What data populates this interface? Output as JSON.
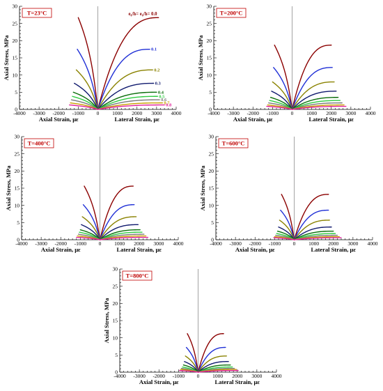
{
  "figure": {
    "ratio_legend_title": "e₀/h= e₀/h= 0.0"
  },
  "chart_data": [
    {
      "type": "line",
      "temperature_label": "T=23°C",
      "xlabel_left": "Axial Strain, με",
      "xlabel_right": "Lateral Strain, με",
      "ylabel": "Axial Stress, MPa",
      "xlim": [
        -4000,
        4000
      ],
      "ylim": [
        0,
        30
      ],
      "x_ticks": [
        -4000,
        -3000,
        -2000,
        -1000,
        0,
        1000,
        2000,
        3000,
        4000
      ],
      "y_ticks": [
        0,
        5,
        10,
        15,
        20,
        25,
        30
      ],
      "series_labels_shown": true,
      "series": [
        {
          "name": "0.0",
          "color": "#8b0000",
          "peak": 26.7,
          "axial_end": -1000,
          "lateral_end": 3100
        },
        {
          "name": "0.1",
          "color": "#1f2fd6",
          "peak": 17.5,
          "axial_end": -1050,
          "lateral_end": 2650
        },
        {
          "name": "0.2",
          "color": "#8a8200",
          "peak": 11.5,
          "axial_end": -1100,
          "lateral_end": 2800
        },
        {
          "name": "0.3",
          "color": "#101a6e",
          "peak": 7.6,
          "axial_end": -1200,
          "lateral_end": 2850
        },
        {
          "name": "0.4",
          "color": "#0a6e0a",
          "peak": 5.0,
          "axial_end": -1250,
          "lateral_end": 3000
        },
        {
          "name": "0.5",
          "color": "#2ecc40",
          "peak": 3.8,
          "axial_end": -1300,
          "lateral_end": 3050
        },
        {
          "name": "0.6",
          "color": "#7a7a7a",
          "peak": 2.8,
          "axial_end": -1350,
          "lateral_end": 3150
        },
        {
          "name": "0.7",
          "color": "#c9a000",
          "peak": 1.9,
          "axial_end": -1400,
          "lateral_end": 3300
        },
        {
          "name": "0.8",
          "color": "#e0209a",
          "peak": 1.3,
          "axial_end": -1450,
          "lateral_end": 3400
        }
      ]
    },
    {
      "type": "line",
      "temperature_label": "T=200°C",
      "xlabel_left": "Axial Strain, με",
      "xlabel_right": "Lateral Strain, με",
      "ylabel": "Axial Stress, MPa",
      "xlim": [
        -4000,
        4000
      ],
      "ylim": [
        0,
        30
      ],
      "x_ticks": [
        -4000,
        -3000,
        -2000,
        -1000,
        0,
        1000,
        2000,
        3000,
        4000
      ],
      "y_ticks": [
        0,
        5,
        10,
        15,
        20,
        25,
        30
      ],
      "series_labels_shown": false,
      "series": [
        {
          "name": "0.0",
          "color": "#8b0000",
          "peak": 18.7,
          "axial_end": -900,
          "lateral_end": 2000
        },
        {
          "name": "0.1",
          "color": "#1f2fd6",
          "peak": 12.2,
          "axial_end": -950,
          "lateral_end": 2050
        },
        {
          "name": "0.2",
          "color": "#8a8200",
          "peak": 8.0,
          "axial_end": -1000,
          "lateral_end": 2150
        },
        {
          "name": "0.3",
          "color": "#101a6e",
          "peak": 5.3,
          "axial_end": -1050,
          "lateral_end": 2250
        },
        {
          "name": "0.4",
          "color": "#0a6e0a",
          "peak": 3.5,
          "axial_end": -1100,
          "lateral_end": 2350
        },
        {
          "name": "0.5",
          "color": "#2ecc40",
          "peak": 2.6,
          "axial_end": -1150,
          "lateral_end": 2450
        },
        {
          "name": "0.6",
          "color": "#7a7a7a",
          "peak": 1.9,
          "axial_end": -1200,
          "lateral_end": 2550
        },
        {
          "name": "0.7",
          "color": "#c9a000",
          "peak": 1.3,
          "axial_end": -1250,
          "lateral_end": 2650
        },
        {
          "name": "0.8",
          "color": "#e0209a",
          "peak": 0.9,
          "axial_end": -1300,
          "lateral_end": 2750
        }
      ]
    },
    {
      "type": "line",
      "temperature_label": "T=400°C",
      "xlabel_left": "Axial Strain, με",
      "xlabel_right": "Lateral Strain, με",
      "ylabel": "Axial Stress, MPa",
      "xlim": [
        -4000,
        4000
      ],
      "ylim": [
        0,
        30
      ],
      "x_ticks": [
        -4000,
        -3000,
        -2000,
        -1000,
        0,
        1000,
        2000,
        3000,
        4000
      ],
      "y_ticks": [
        0,
        5,
        10,
        15,
        20,
        25,
        30
      ],
      "series_labels_shown": false,
      "series": [
        {
          "name": "0.0",
          "color": "#8b0000",
          "peak": 15.6,
          "axial_end": -800,
          "lateral_end": 1700
        },
        {
          "name": "0.1",
          "color": "#1f2fd6",
          "peak": 10.2,
          "axial_end": -850,
          "lateral_end": 1750
        },
        {
          "name": "0.2",
          "color": "#8a8200",
          "peak": 6.7,
          "axial_end": -900,
          "lateral_end": 1850
        },
        {
          "name": "0.3",
          "color": "#101a6e",
          "peak": 4.4,
          "axial_end": -950,
          "lateral_end": 1950
        },
        {
          "name": "0.4",
          "color": "#0a6e0a",
          "peak": 2.9,
          "axial_end": -1000,
          "lateral_end": 2050
        },
        {
          "name": "0.5",
          "color": "#2ecc40",
          "peak": 2.2,
          "axial_end": -1050,
          "lateral_end": 2150
        },
        {
          "name": "0.6",
          "color": "#7a7a7a",
          "peak": 1.6,
          "axial_end": -1100,
          "lateral_end": 2250
        },
        {
          "name": "0.7",
          "color": "#c9a000",
          "peak": 1.1,
          "axial_end": -1150,
          "lateral_end": 2350
        },
        {
          "name": "0.8",
          "color": "#e0209a",
          "peak": 0.7,
          "axial_end": -1200,
          "lateral_end": 2450
        }
      ]
    },
    {
      "type": "line",
      "temperature_label": "T=600°C",
      "xlabel_left": "Axial Strain, με",
      "xlabel_right": "Lateral Strain, με",
      "ylabel": "Axial Stress, MPa",
      "xlim": [
        -4000,
        4000
      ],
      "ylim": [
        0,
        30
      ],
      "x_ticks": [
        -4000,
        -3000,
        -2000,
        -1000,
        0,
        1000,
        2000,
        3000,
        4000
      ],
      "y_ticks": [
        0,
        5,
        10,
        15,
        20,
        25,
        30
      ],
      "series_labels_shown": false,
      "series": [
        {
          "name": "0.0",
          "color": "#8b0000",
          "peak": 13.2,
          "axial_end": -650,
          "lateral_end": 1750
        },
        {
          "name": "0.1",
          "color": "#1f2fd6",
          "peak": 8.6,
          "axial_end": -700,
          "lateral_end": 1750
        },
        {
          "name": "0.2",
          "color": "#8a8200",
          "peak": 5.7,
          "axial_end": -750,
          "lateral_end": 1800
        },
        {
          "name": "0.3",
          "color": "#101a6e",
          "peak": 3.7,
          "axial_end": -800,
          "lateral_end": 1900
        },
        {
          "name": "0.4",
          "color": "#0a6e0a",
          "peak": 2.5,
          "axial_end": -850,
          "lateral_end": 2000
        },
        {
          "name": "0.5",
          "color": "#2ecc40",
          "peak": 1.8,
          "axial_end": -900,
          "lateral_end": 2100
        },
        {
          "name": "0.6",
          "color": "#7a7a7a",
          "peak": 1.3,
          "axial_end": -950,
          "lateral_end": 2200
        },
        {
          "name": "0.7",
          "color": "#c9a000",
          "peak": 0.9,
          "axial_end": -1000,
          "lateral_end": 2300
        },
        {
          "name": "0.8",
          "color": "#e0209a",
          "peak": 0.6,
          "axial_end": -1050,
          "lateral_end": 2400
        }
      ]
    },
    {
      "type": "line",
      "temperature_label": "T=800°C",
      "xlabel_left": "Axial Strain, με",
      "xlabel_right": "Lateral Strain, με",
      "ylabel": "Axial Stress, MPa",
      "xlim": [
        -4000,
        4000
      ],
      "ylim": [
        0,
        30
      ],
      "x_ticks": [
        -4000,
        -3000,
        -2000,
        -1000,
        0,
        1000,
        2000,
        3000,
        4000
      ],
      "y_ticks": [
        0,
        5,
        10,
        15,
        20,
        25,
        30
      ],
      "series_labels_shown": false,
      "series": [
        {
          "name": "0.0",
          "color": "#8b0000",
          "peak": 11.2,
          "axial_end": -550,
          "lateral_end": 1300
        },
        {
          "name": "0.1",
          "color": "#1f2fd6",
          "peak": 7.2,
          "axial_end": -600,
          "lateral_end": 1400
        },
        {
          "name": "0.2",
          "color": "#8a8200",
          "peak": 4.7,
          "axial_end": -650,
          "lateral_end": 1450
        },
        {
          "name": "0.3",
          "color": "#101a6e",
          "peak": 3.1,
          "axial_end": -700,
          "lateral_end": 1550
        },
        {
          "name": "0.4",
          "color": "#0a6e0a",
          "peak": 2.1,
          "axial_end": -750,
          "lateral_end": 1650
        },
        {
          "name": "0.5",
          "color": "#2ecc40",
          "peak": 1.5,
          "axial_end": -800,
          "lateral_end": 1750
        },
        {
          "name": "0.6",
          "color": "#7a7a7a",
          "peak": 1.1,
          "axial_end": -850,
          "lateral_end": 1850
        },
        {
          "name": "0.7",
          "color": "#c9a000",
          "peak": 0.8,
          "axial_end": -900,
          "lateral_end": 1950
        },
        {
          "name": "0.8",
          "color": "#e0209a",
          "peak": 0.5,
          "axial_end": -950,
          "lateral_end": 2050
        }
      ]
    }
  ]
}
